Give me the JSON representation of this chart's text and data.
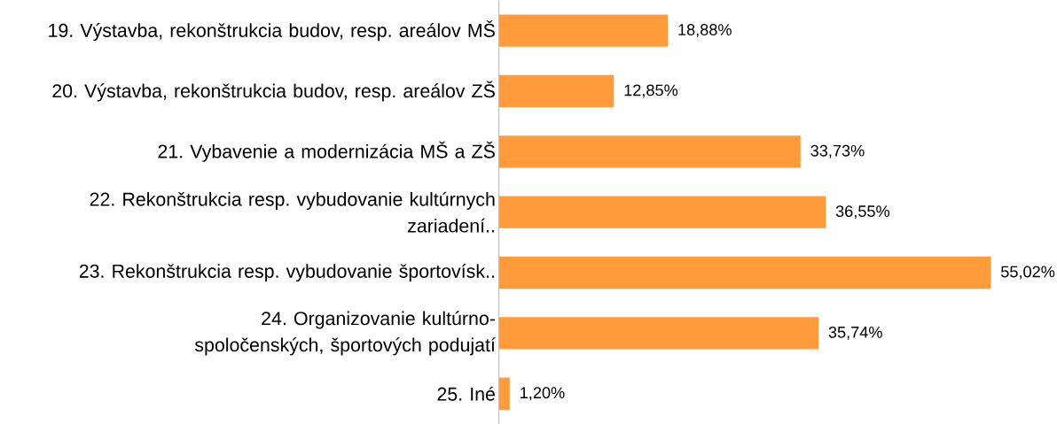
{
  "chart_data": {
    "type": "bar",
    "orientation": "horizontal",
    "categories": [
      "19. Výstavba, rekonštrukcia budov, resp. areálov MŠ",
      "20. Výstavba, rekonštrukcia budov, resp. areálov ZŠ",
      "21. Vybavenie a modernizácia MŠ a ZŠ",
      "22. Rekonštrukcia resp. vybudovanie kultúrnych zariadení..",
      "23. Rekonštrukcia resp. vybudovanie športovísk..",
      "24. Organizovanie kultúrno-spoločenských, športových podujatí",
      "25. Iné"
    ],
    "values": [
      18.88,
      12.85,
      33.73,
      36.55,
      55.02,
      35.74,
      1.2
    ],
    "value_labels": [
      "18,88%",
      "12,85%",
      "33,73%",
      "36,55%",
      "55,02%",
      "35,74%",
      "1,20%"
    ],
    "color": "#ff9b3a"
  }
}
